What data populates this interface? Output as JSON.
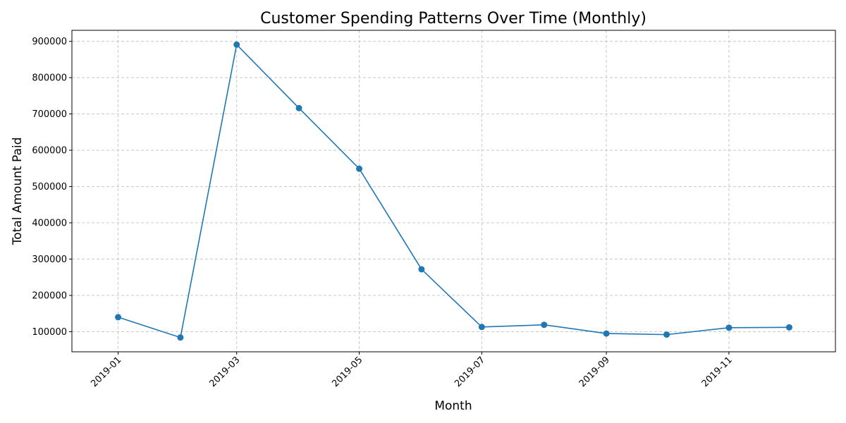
{
  "chart_data": {
    "type": "line",
    "title": "Customer Spending Patterns Over Time (Monthly)",
    "xlabel": "Month",
    "ylabel": "Total Amount Paid",
    "x": [
      "2019-01",
      "2019-02",
      "2019-03",
      "2019-04",
      "2019-05",
      "2019-06",
      "2019-07",
      "2019-08",
      "2019-09",
      "2019-10",
      "2019-11",
      "2019-12"
    ],
    "series": [
      {
        "values": [
          140000,
          84000,
          891000,
          716000,
          549000,
          272000,
          113000,
          119000,
          95000,
          92000,
          111000,
          112000
        ],
        "color": "#1f77b4",
        "marker": "circle"
      }
    ],
    "x_ticks": [
      "2019-01",
      "2019-03",
      "2019-05",
      "2019-07",
      "2019-09",
      "2019-11"
    ],
    "y_ticks": [
      100000,
      200000,
      300000,
      400000,
      500000,
      600000,
      700000,
      800000,
      900000
    ],
    "y_tick_labels": [
      "100000",
      "200000",
      "300000",
      "400000",
      "500000",
      "600000",
      "700000",
      "800000",
      "900000"
    ],
    "x_range": [
      "2018-12-09",
      "2019-12-24"
    ],
    "ylim": [
      44640,
      930360
    ],
    "grid": true,
    "grid_style": "dashed",
    "legend": false
  }
}
